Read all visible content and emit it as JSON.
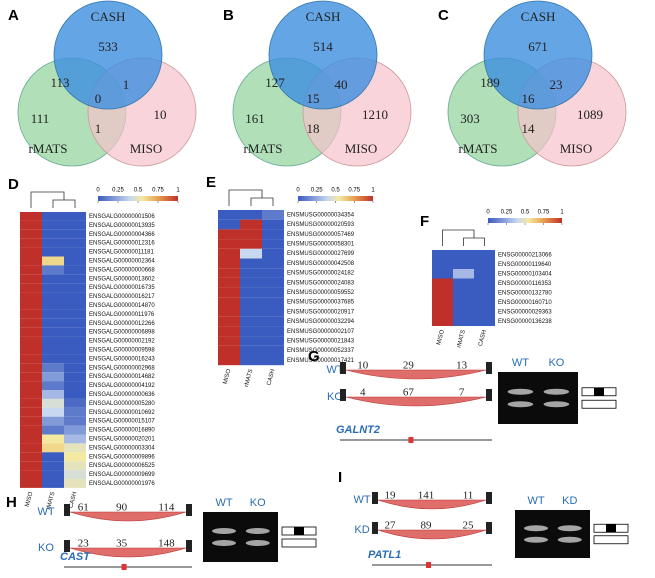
{
  "venns": [
    {
      "label": "A",
      "sets": [
        "CASH",
        "rMATS",
        "MISO"
      ],
      "counts": {
        "cash_only": 533,
        "cash_rmats": 113,
        "cash_miso": 1,
        "all": 0,
        "rmats_only": 111,
        "rmats_miso": 1,
        "miso_only": 10
      }
    },
    {
      "label": "B",
      "sets": [
        "CASH",
        "rMATS",
        "MISO"
      ],
      "counts": {
        "cash_only": 514,
        "cash_rmats": 127,
        "cash_miso": 40,
        "all": 15,
        "rmats_only": 161,
        "rmats_miso": 18,
        "miso_only": 1210
      }
    },
    {
      "label": "C",
      "sets": [
        "CASH",
        "rMATS",
        "MISO"
      ],
      "counts": {
        "cash_only": 671,
        "cash_rmats": 189,
        "cash_miso": 23,
        "all": 16,
        "rmats_only": 303,
        "rmats_miso": 14,
        "miso_only": 1089
      }
    }
  ],
  "heatmaps": [
    {
      "label": "D",
      "colorbar_ticks": [
        0,
        0.25,
        0.5,
        0.75,
        1
      ],
      "columns": [
        "MISO",
        "rMATS",
        "CASH"
      ],
      "rows": [
        "ENSGALG00000001506",
        "ENSGALG00000013935",
        "ENSGALG00000004366",
        "ENSGALG00000012316",
        "ENSGALG00000011181",
        "ENSGALG00000002364",
        "ENSGALG00000000668",
        "ENSGALG00000013602",
        "ENSGALG00000016735",
        "ENSGALG00000016217",
        "ENSGALG00000014870",
        "ENSGALG00000011976",
        "ENSGALG00000012266",
        "ENSGALG00000006898",
        "ENSGALG00000002192",
        "ENSGALG00000009598",
        "ENSGALG00000016243",
        "ENSGALG00000002968",
        "ENSGALG00000014682",
        "ENSGALG00000004192",
        "ENSGALG00000000636",
        "ENSGALG00000005280",
        "ENSGALG00000010692",
        "ENSGALG00000015107",
        "ENSGALG00000016890",
        "ENSGALG00000020201",
        "ENSGALG00000003304",
        "ENSGALG00000009896",
        "ENSGALG00000006525",
        "ENSGALG00000009699",
        "ENSGALG00000001976"
      ],
      "values": [
        [
          1,
          0,
          0
        ],
        [
          1,
          0,
          0
        ],
        [
          1,
          0,
          0
        ],
        [
          1,
          0,
          0
        ],
        [
          1,
          0,
          0
        ],
        [
          1,
          0.6,
          0
        ],
        [
          1,
          0.1,
          0
        ],
        [
          1,
          0,
          0
        ],
        [
          1,
          0,
          0
        ],
        [
          1,
          0,
          0
        ],
        [
          1,
          0,
          0
        ],
        [
          1,
          0,
          0
        ],
        [
          1,
          0,
          0
        ],
        [
          1,
          0,
          0
        ],
        [
          1,
          0,
          0
        ],
        [
          1,
          0,
          0
        ],
        [
          1,
          0,
          0
        ],
        [
          1,
          0.1,
          0
        ],
        [
          1,
          0.2,
          0
        ],
        [
          1,
          0.1,
          0
        ],
        [
          1,
          0.3,
          0
        ],
        [
          1,
          0.45,
          0.05
        ],
        [
          1,
          0.4,
          0.1
        ],
        [
          1,
          0.2,
          0.1
        ],
        [
          1,
          0.1,
          0.2
        ],
        [
          1,
          0.55,
          0.3
        ],
        [
          1,
          0.6,
          0.5
        ],
        [
          1,
          0,
          0.55
        ],
        [
          1,
          0,
          0.5
        ],
        [
          1,
          0,
          0.45
        ],
        [
          1,
          0,
          0.5
        ]
      ]
    },
    {
      "label": "E",
      "colorbar_ticks": [
        0,
        0.25,
        0.5,
        0.75,
        1
      ],
      "columns": [
        "MISO",
        "rMATS",
        "CASH"
      ],
      "rows": [
        "ENSMUSG00000034354",
        "ENSMUSG00000020593",
        "ENSMUSG00000057469",
        "ENSMUSG00000058301",
        "ENSMUSG00000027699",
        "ENSMUSG00000042508",
        "ENSMUSG00000024182",
        "ENSMUSG00000024083",
        "ENSMUSG00000059552",
        "ENSMUSG00000037685",
        "ENSMUSG00000020917",
        "ENSMUSG00000032294",
        "ENSMUSG00000002107",
        "ENSMUSG00000021843",
        "ENSMUSG00000052337",
        "ENSMUSG00000017421"
      ],
      "values": [
        [
          0,
          0,
          0.1
        ],
        [
          0,
          1,
          0
        ],
        [
          1,
          1,
          0
        ],
        [
          1,
          1,
          0
        ],
        [
          1,
          0.4,
          0
        ],
        [
          1,
          0,
          0
        ],
        [
          1,
          0,
          0
        ],
        [
          1,
          0,
          0
        ],
        [
          1,
          0,
          0
        ],
        [
          1,
          0,
          0
        ],
        [
          1,
          0,
          0
        ],
        [
          1,
          0,
          0
        ],
        [
          1,
          0,
          0
        ],
        [
          1,
          0,
          0
        ],
        [
          1,
          0,
          0
        ],
        [
          1,
          0,
          0
        ]
      ]
    },
    {
      "label": "F",
      "colorbar_ticks": [
        0,
        0.25,
        0.5,
        0.75,
        1
      ],
      "columns": [
        "MISO",
        "rMATS",
        "CASH"
      ],
      "rows": [
        "ENSG00000213066",
        "ENSG00000119640",
        "ENSG00000103404",
        "ENSG00000116353",
        "ENSG00000132780",
        "ENSG00000160710",
        "ENSG00000029363",
        "ENSG00000136238"
      ],
      "values": [
        [
          0,
          0,
          0
        ],
        [
          0,
          0,
          0
        ],
        [
          0,
          0.3,
          0
        ],
        [
          1,
          0,
          0
        ],
        [
          1,
          0,
          0
        ],
        [
          1,
          0,
          0
        ],
        [
          1,
          0,
          0
        ],
        [
          1,
          0,
          0
        ]
      ]
    }
  ],
  "sashimis": [
    {
      "label": "G",
      "conditions": [
        "WT",
        "KO"
      ],
      "counts": [
        [
          10,
          29,
          13
        ],
        [
          4,
          67,
          7
        ]
      ],
      "gene": "GALNT2",
      "gel_lanes": [
        "WT",
        "KO"
      ]
    },
    {
      "label": "H",
      "conditions": [
        "WT",
        "KO"
      ],
      "counts": [
        [
          61,
          90,
          114
        ],
        [
          23,
          35,
          148
        ]
      ],
      "gene": "CAST",
      "gel_lanes": [
        "WT",
        "KO"
      ]
    },
    {
      "label": "I",
      "conditions": [
        "WT",
        "KD"
      ],
      "counts": [
        [
          19,
          141,
          11
        ],
        [
          27,
          89,
          25
        ]
      ],
      "gene": "PATL1",
      "gel_lanes": [
        "WT",
        "KD"
      ]
    }
  ]
}
